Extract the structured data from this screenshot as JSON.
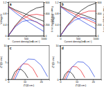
{
  "chart_data": [
    {
      "type": "line",
      "title": "a",
      "x_label": "Current density/(mA cm⁻²)",
      "y_label": "Voltage/V",
      "y2_label": "Power density/(mW cm⁻²)",
      "x": [
        0,
        200,
        400,
        600,
        800,
        1000
      ],
      "xlim": [
        0,
        1000
      ],
      "xticks": [
        0,
        500,
        1000
      ],
      "ylim": [
        0,
        1.2
      ],
      "yticks": [
        0,
        {
          "value": 0.4,
          "label": "0.4"
        },
        {
          "value": 0.8,
          "label": "0.8"
        },
        {
          "value": 1.2,
          "label": "1.2"
        }
      ],
      "y2lim": [
        0,
        600
      ],
      "y2ticks": [
        0,
        200,
        400,
        600
      ],
      "series": [
        {
          "color": "#000000",
          "values": [
            1.05,
            0.92,
            0.82,
            0.72,
            0.62,
            0.52
          ]
        },
        {
          "color": "#e8141c",
          "values": [
            1.04,
            0.88,
            0.74,
            0.61,
            0.48,
            0.36
          ]
        },
        {
          "color": "#1f3fe0",
          "values": [
            1.03,
            0.82,
            0.64,
            0.47,
            0.31,
            0.16
          ]
        },
        {
          "color": "#000000",
          "axis": "y2",
          "values": [
            0,
            184,
            328,
            432,
            496,
            520
          ]
        },
        {
          "color": "#e8141c",
          "axis": "y2",
          "values": [
            0,
            176,
            296,
            366,
            384,
            360
          ]
        },
        {
          "color": "#1f3fe0",
          "axis": "y2",
          "values": [
            0,
            164,
            256,
            282,
            248,
            160
          ]
        }
      ]
    },
    {
      "type": "line",
      "title": "b",
      "x_label": "Current density/(mA cm⁻²)",
      "y_label": "Voltage/V",
      "y2_label": "Power density/(mW cm⁻²)",
      "x": [
        0,
        200,
        400,
        600,
        800,
        1000
      ],
      "xlim": [
        0,
        1000
      ],
      "xticks": [
        0,
        500,
        1000
      ],
      "ylim": [
        0,
        1.2
      ],
      "yticks": [
        0,
        {
          "value": 0.4,
          "label": "0.4"
        },
        {
          "value": 0.8,
          "label": "0.8"
        },
        {
          "value": 1.2,
          "label": "1.2"
        }
      ],
      "y2lim": [
        0,
        600
      ],
      "y2ticks": [
        0,
        200,
        400,
        600
      ],
      "series": [
        {
          "color": "#000000",
          "values": [
            1.06,
            0.94,
            0.85,
            0.76,
            0.67,
            0.58
          ]
        },
        {
          "color": "#e8141c",
          "values": [
            1.05,
            0.9,
            0.78,
            0.66,
            0.55,
            0.44
          ]
        },
        {
          "color": "#1f3fe0",
          "values": [
            1.04,
            0.85,
            0.69,
            0.54,
            0.39,
            0.25
          ]
        },
        {
          "color": "#000000",
          "axis": "y2",
          "values": [
            0,
            188,
            340,
            456,
            536,
            580
          ]
        },
        {
          "color": "#e8141c",
          "axis": "y2",
          "values": [
            0,
            180,
            312,
            396,
            440,
            440
          ]
        },
        {
          "color": "#1f3fe0",
          "axis": "y2",
          "values": [
            0,
            170,
            276,
            324,
            312,
            250
          ]
        }
      ]
    },
    {
      "type": "line",
      "title": "c",
      "x_label": "Z'/(Ω cm²)",
      "y_label": "-Z''/(Ω cm²)",
      "xlim": [
        0,
        25
      ],
      "xticks": [
        0,
        10,
        20
      ],
      "ylim": [
        0,
        10
      ],
      "yticks": [
        0,
        5,
        10
      ],
      "series": [
        {
          "color": "#000000",
          "x": [
            2,
            4,
            6,
            8,
            10,
            12
          ],
          "values": [
            0,
            2.2,
            3.0,
            2.9,
            2.0,
            0.4
          ]
        },
        {
          "color": "#e8141c",
          "x": [
            3,
            6,
            9,
            12,
            15,
            18
          ],
          "values": [
            0,
            3.2,
            4.6,
            4.5,
            3.2,
            0.6
          ]
        },
        {
          "color": "#1f3fe0",
          "x": [
            4,
            8,
            12,
            16,
            20,
            24
          ],
          "values": [
            0,
            4.0,
            6.0,
            5.9,
            4.2,
            0.8
          ]
        }
      ]
    },
    {
      "type": "line",
      "title": "d",
      "x_label": "Z'/(Ω cm²)",
      "y_label": "-Z''/(Ω cm²)",
      "xlim": [
        0,
        25
      ],
      "xticks": [
        0,
        10,
        20
      ],
      "ylim": [
        0,
        10
      ],
      "yticks": [
        0,
        5,
        10
      ],
      "series": [
        {
          "color": "#000000",
          "x": [
            1.5,
            3,
            4.5,
            6,
            7.5,
            9
          ],
          "values": [
            0,
            1.6,
            2.3,
            2.2,
            1.5,
            0.3
          ]
        },
        {
          "color": "#e8141c",
          "x": [
            2.5,
            5,
            7.5,
            10,
            12.5,
            15
          ],
          "values": [
            0,
            2.6,
            3.8,
            3.7,
            2.6,
            0.5
          ]
        },
        {
          "color": "#1f3fe0",
          "x": [
            3.5,
            7,
            10.5,
            14,
            17.5,
            21
          ],
          "values": [
            0,
            3.5,
            5.2,
            5.1,
            3.6,
            0.7
          ]
        }
      ]
    }
  ]
}
